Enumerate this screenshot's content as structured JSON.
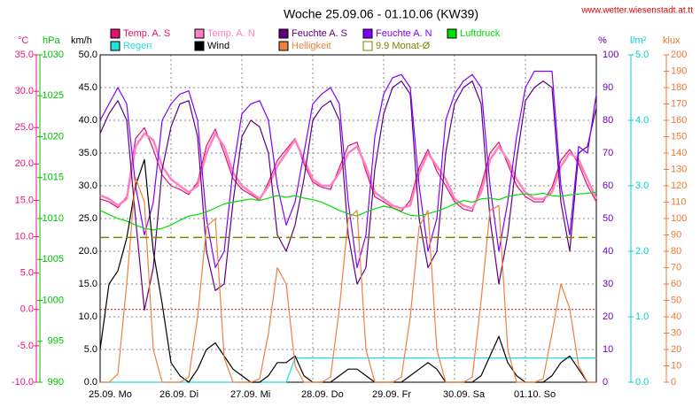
{
  "chart_data": {
    "type": "line",
    "title": "Woche 25.09.06 - 01.10.06 (KW39)",
    "source": "www.wetter.wiesenstadt.at.tt",
    "xlim": [
      0,
      168
    ],
    "xticks": [
      {
        "value": 0,
        "label": "25.09.  Mo"
      },
      {
        "value": 24,
        "label": "26.09.  Di"
      },
      {
        "value": 48,
        "label": "27.09.  Mi"
      },
      {
        "value": 72,
        "label": "28.09.  Do"
      },
      {
        "value": 96,
        "label": "29.09.  Fr"
      },
      {
        "value": 120,
        "label": "30.09.  Sa"
      },
      {
        "value": 144,
        "label": "01.10.  So"
      }
    ],
    "x": [
      0,
      3,
      6,
      9,
      12,
      15,
      18,
      21,
      24,
      27,
      30,
      33,
      36,
      39,
      42,
      45,
      48,
      51,
      54,
      57,
      60,
      63,
      66,
      69,
      72,
      75,
      78,
      81,
      84,
      87,
      90,
      93,
      96,
      99,
      102,
      105,
      108,
      111,
      114,
      117,
      120,
      123,
      126,
      129,
      132,
      135,
      138,
      141,
      144,
      147,
      150,
      153,
      156,
      159,
      162,
      165,
      168
    ],
    "grid": true,
    "axes": [
      {
        "id": "temp",
        "label": "°C",
        "color": "#f0107f",
        "lim": [
          -10,
          35
        ],
        "zero_line": true,
        "ticks": [
          {
            "value": -10,
            "label": "-10.0"
          },
          {
            "value": -5,
            "label": "-5.0"
          },
          {
            "value": 0,
            "label": "0.0"
          },
          {
            "value": 5,
            "label": "5.0"
          },
          {
            "value": 10,
            "label": "10.0"
          },
          {
            "value": 15,
            "label": "15.0"
          },
          {
            "value": 20,
            "label": "20.0"
          },
          {
            "value": 25,
            "label": "25.0"
          },
          {
            "value": 30,
            "label": "30.0"
          },
          {
            "value": 35,
            "label": "35.0"
          }
        ]
      },
      {
        "id": "hpa",
        "label": "hPa",
        "color": "#00c000",
        "lim": [
          990,
          1030
        ],
        "ticks": [
          990,
          995,
          1000,
          1005,
          1010,
          1015,
          1020,
          1025,
          1030
        ]
      },
      {
        "id": "kmh",
        "label": "km/h",
        "color": "#000000",
        "lim": [
          0,
          50
        ],
        "grid": true,
        "ticks": [
          {
            "value": 0,
            "label": "0.0"
          },
          {
            "value": 5,
            "label": "5.0"
          },
          {
            "value": 10,
            "label": "10.0"
          },
          {
            "value": 15,
            "label": "15.0"
          },
          {
            "value": 20,
            "label": "20.0"
          },
          {
            "value": 25,
            "label": "25.0"
          },
          {
            "value": 30,
            "label": "30.0"
          },
          {
            "value": 35,
            "label": "35.0"
          },
          {
            "value": 40,
            "label": "40.0"
          },
          {
            "value": 45,
            "label": "45.0"
          },
          {
            "value": 50,
            "label": "50.0"
          }
        ]
      },
      {
        "id": "pct",
        "label": "%",
        "color": "#7000c0",
        "lim": [
          0,
          100
        ],
        "ticks": [
          0,
          10,
          20,
          30,
          40,
          50,
          60,
          70,
          80,
          90,
          100
        ]
      },
      {
        "id": "rain",
        "label": "l/m²",
        "color": "#00d0d0",
        "lim": [
          0,
          5
        ],
        "ticks": [
          {
            "value": 0,
            "label": "0.0"
          },
          {
            "value": 1,
            "label": "1.0"
          },
          {
            "value": 2,
            "label": "2.0"
          },
          {
            "value": 3,
            "label": "3.0"
          },
          {
            "value": 4,
            "label": "4.0"
          },
          {
            "value": 5,
            "label": "5.0"
          }
        ]
      },
      {
        "id": "klux",
        "label": "klux",
        "color": "#f07830",
        "lim": [
          0,
          200
        ],
        "ticks": [
          0,
          10,
          20,
          30,
          40,
          50,
          60,
          70,
          80,
          90,
          100,
          110,
          120,
          130,
          140,
          150,
          160,
          170,
          180,
          190,
          200
        ]
      }
    ],
    "series": [
      {
        "name": "Temp. A. S",
        "color": "#e0106f",
        "axis": "temp",
        "values": [
          15.2,
          14.8,
          14.0,
          15.5,
          23.5,
          25.0,
          22.0,
          18.5,
          17.0,
          16.5,
          15.8,
          17.5,
          22.5,
          24.8,
          21.5,
          18.0,
          16.5,
          15.8,
          15.0,
          17.5,
          20.5,
          22.0,
          23.5,
          20.0,
          17.5,
          16.8,
          16.5,
          19.5,
          22.5,
          23.0,
          19.0,
          15.5,
          14.8,
          14.0,
          13.5,
          15.0,
          19.5,
          22.0,
          19.0,
          17.0,
          14.8,
          13.8,
          13.5,
          17.0,
          21.5,
          23.0,
          20.0,
          17.0,
          15.5,
          14.8,
          14.8,
          16.8,
          20.5,
          22.0,
          20.0,
          17.0,
          14.8
        ]
      },
      {
        "name": "Temp. A. N",
        "color": "#ff80c0",
        "axis": "temp",
        "width": 2.5,
        "values": [
          15.7,
          15.2,
          14.3,
          15.2,
          22.4,
          24.2,
          23.3,
          19.7,
          17.9,
          17.0,
          16.1,
          17.0,
          21.5,
          24.2,
          22.4,
          18.8,
          17.0,
          16.1,
          15.2,
          17.0,
          19.7,
          21.5,
          23.3,
          20.6,
          17.9,
          17.0,
          17.0,
          18.8,
          21.5,
          22.4,
          19.7,
          16.1,
          15.2,
          14.3,
          13.9,
          14.3,
          18.8,
          21.5,
          19.7,
          17.9,
          15.2,
          14.3,
          13.9,
          16.1,
          20.6,
          22.4,
          20.6,
          17.9,
          16.1,
          15.2,
          15.2,
          16.1,
          19.7,
          21.5,
          20.6,
          17.9,
          15.2
        ]
      },
      {
        "name": "Feuchte A. S",
        "color": "#600080",
        "axis": "pct",
        "values": [
          76,
          82,
          86,
          80,
          50,
          22,
          35,
          65,
          78,
          85,
          86,
          75,
          40,
          28,
          30,
          55,
          75,
          80,
          78,
          70,
          45,
          40,
          48,
          62,
          80,
          84,
          86,
          80,
          45,
          30,
          35,
          65,
          82,
          90,
          92,
          88,
          50,
          35,
          40,
          70,
          85,
          90,
          92,
          85,
          50,
          30,
          45,
          68,
          86,
          90,
          92,
          90,
          55,
          40,
          70,
          72,
          84
        ]
      },
      {
        "name": "Feuchte A. N",
        "color": "#8000ff",
        "axis": "pct",
        "values": [
          80,
          85,
          90,
          85,
          60,
          45,
          55,
          80,
          85,
          88,
          89,
          80,
          50,
          35,
          40,
          65,
          82,
          85,
          86,
          80,
          60,
          48,
          55,
          70,
          85,
          88,
          90,
          85,
          55,
          35,
          45,
          75,
          88,
          93,
          94,
          90,
          60,
          40,
          50,
          80,
          88,
          92,
          94,
          90,
          60,
          40,
          55,
          75,
          90,
          95,
          95,
          95,
          60,
          45,
          72,
          70,
          88
        ]
      },
      {
        "name": "Luftdruck",
        "color": "#00e000",
        "axis": "hpa",
        "values": [
          1011.0,
          1010.5,
          1010.0,
          1009.7,
          1009.2,
          1008.8,
          1008.6,
          1008.8,
          1009.2,
          1009.8,
          1010.3,
          1010.5,
          1010.8,
          1011.3,
          1011.8,
          1012.0,
          1012.2,
          1012.4,
          1012.2,
          1012.5,
          1012.8,
          1012.6,
          1012.8,
          1012.5,
          1012.3,
          1012.0,
          1011.5,
          1011.0,
          1010.6,
          1010.3,
          1010.8,
          1011.2,
          1011.5,
          1011.3,
          1010.8,
          1010.4,
          1010.3,
          1010.6,
          1010.9,
          1011.3,
          1011.8,
          1012.2,
          1012.0,
          1012.4,
          1012.5,
          1012.3,
          1012.7,
          1012.9,
          1013.0,
          1012.9,
          1013.1,
          1012.8,
          1012.7,
          1012.9,
          1013.0,
          1013.1,
          1013.2
        ]
      },
      {
        "name": "Regen",
        "color": "#20e0e0",
        "axis": "rain",
        "values": [
          0,
          0,
          0,
          0,
          0,
          0,
          0,
          0,
          0,
          0,
          0,
          0,
          0,
          0,
          0,
          0,
          0,
          0,
          0,
          0,
          0,
          0,
          0.37,
          0.37,
          0.37,
          0.37,
          0.37,
          0.37,
          0.37,
          0.37,
          0.37,
          0.37,
          0.37,
          0.37,
          0.37,
          0.37,
          0.37,
          0.37,
          0.37,
          0.37,
          0.37,
          0.37,
          0.37,
          0.37,
          0.37,
          0.37,
          0.37,
          0.37,
          0.37,
          0.37,
          0.37,
          0.37,
          0.37,
          0.37,
          0.37,
          0.37,
          0.37
        ]
      },
      {
        "name": "Wind",
        "color": "#000000",
        "axis": "kmh",
        "values": [
          5,
          15,
          17,
          22,
          30,
          34,
          20,
          12,
          3,
          1,
          0,
          2,
          5,
          6,
          4,
          2,
          1,
          0,
          0,
          1,
          3,
          3,
          4,
          1,
          0,
          0,
          0,
          1,
          2,
          2,
          1,
          0,
          0,
          0,
          0,
          1,
          2,
          3,
          2,
          0,
          0,
          0,
          0,
          1,
          4,
          7,
          3,
          1,
          0,
          0,
          0,
          1,
          3,
          4,
          2,
          0,
          0
        ]
      },
      {
        "name": "Helligkeit",
        "color": "#f08040",
        "axis": "klux",
        "values": [
          0,
          0,
          5,
          60,
          125,
          110,
          20,
          0,
          0,
          0,
          3,
          40,
          95,
          100,
          15,
          0,
          0,
          0,
          2,
          30,
          70,
          60,
          10,
          0,
          0,
          0,
          3,
          45,
          100,
          105,
          20,
          0,
          0,
          0,
          3,
          40,
          95,
          105,
          20,
          0,
          0,
          0,
          3,
          50,
          105,
          108,
          20,
          0,
          0,
          0,
          2,
          30,
          60,
          45,
          10,
          0,
          0
        ]
      },
      {
        "name": "9.9 Monat-Ø",
        "color": "#808000",
        "axis": "temp",
        "legend_marker": "outline",
        "dash": "10,5",
        "constant": 9.9
      }
    ]
  }
}
